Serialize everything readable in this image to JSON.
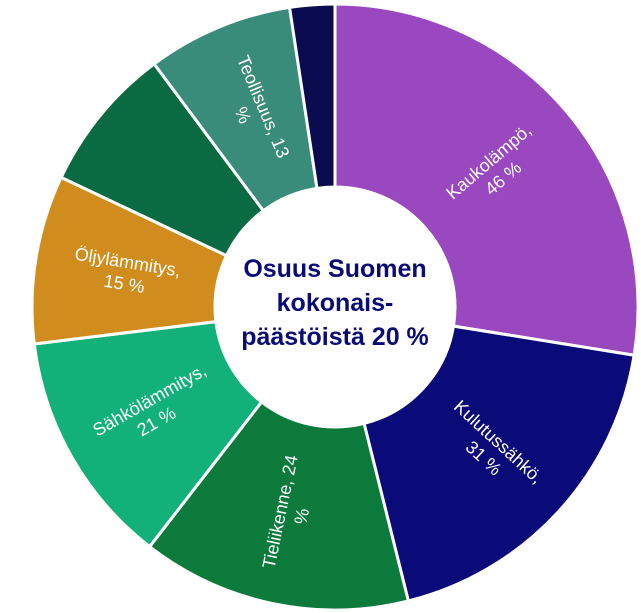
{
  "chart_data": {
    "type": "donut",
    "center_label": [
      "Osuus Suomen",
      "kokonais-",
      "päästöistä 20 %"
    ],
    "categories": [
      "Kaukolämpö, 46 %",
      "Kulutussähkö, 31 %",
      "Tieliikenne, 24 %",
      "Sähkölämmitys, 21 %",
      "Öljylämmitys, 15 %",
      null,
      "Teollisuus, 13 %",
      null
    ],
    "values": [
      46,
      31,
      24,
      21,
      15,
      13,
      13,
      4
    ],
    "colors": [
      "#9a48c0",
      "#0a0a78",
      "#0b7a3a",
      "#13b17a",
      "#d08d1e",
      "#0a6a42",
      "#3a8c7a",
      "#0b0b50"
    ]
  }
}
